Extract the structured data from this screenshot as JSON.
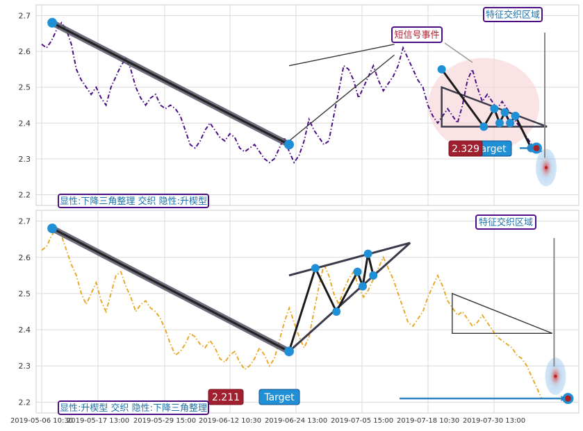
{
  "chart_data": [
    {
      "type": "line",
      "panel": "top",
      "series_color": "#4b0c84",
      "line_style": "dash-dot",
      "ylim": [
        2.17,
        2.73
      ],
      "yticks": [
        2.2,
        2.3,
        2.4,
        2.5,
        2.6,
        2.7
      ],
      "ytick_labels": [
        "2.2",
        "2.3",
        "2.4",
        "2.5",
        "2.6",
        "2.7"
      ],
      "grid": true,
      "series_y": [
        2.62,
        2.61,
        2.63,
        2.66,
        2.68,
        2.66,
        2.62,
        2.55,
        2.52,
        2.5,
        2.48,
        2.5,
        2.47,
        2.45,
        2.5,
        2.53,
        2.56,
        2.58,
        2.55,
        2.5,
        2.47,
        2.45,
        2.47,
        2.48,
        2.45,
        2.44,
        2.45,
        2.44,
        2.42,
        2.38,
        2.34,
        2.33,
        2.35,
        2.38,
        2.4,
        2.38,
        2.36,
        2.35,
        2.37,
        2.36,
        2.33,
        2.32,
        2.33,
        2.34,
        2.32,
        2.3,
        2.29,
        2.3,
        2.33,
        2.36,
        2.32,
        2.29,
        2.31,
        2.35,
        2.41,
        2.38,
        2.36,
        2.34,
        2.35,
        2.42,
        2.49,
        2.56,
        2.55,
        2.52,
        2.47,
        2.5,
        2.53,
        2.56,
        2.52,
        2.49,
        2.51,
        2.53,
        2.56,
        2.61,
        2.58,
        2.55,
        2.52,
        2.5,
        2.45,
        2.42,
        2.4,
        2.42,
        2.44,
        2.42,
        2.4,
        2.45,
        2.52,
        2.55,
        2.5,
        2.46,
        2.48,
        2.46,
        2.44,
        2.46,
        2.44,
        2.42,
        2.4,
        2.38,
        2.36,
        2.34,
        2.33,
        2.32
      ],
      "x_range": [
        0,
        101
      ],
      "pattern_points": [
        {
          "x": 2,
          "y": 2.68
        },
        {
          "x": 47,
          "y": 2.34
        }
      ],
      "triangle": {
        "points": [
          {
            "x": 76,
            "y": 2.5
          },
          {
            "x": 96,
            "y": 2.39
          },
          {
            "x": 76,
            "y": 2.39
          }
        ]
      },
      "wedge_lines": [
        {
          "x1": 47,
          "y1": 2.56,
          "x2": 67,
          "y2": 2.62
        },
        {
          "x1": 47,
          "y1": 2.35,
          "x2": 67,
          "y2": 2.59
        }
      ],
      "zigzag": [
        {
          "x": 76,
          "y": 2.55
        },
        {
          "x": 84,
          "y": 2.39
        },
        {
          "x": 86,
          "y": 2.44
        },
        {
          "x": 87,
          "y": 2.4
        },
        {
          "x": 88,
          "y": 2.43
        },
        {
          "x": 89,
          "y": 2.4
        },
        {
          "x": 90,
          "y": 2.42
        },
        {
          "x": 93,
          "y": 2.33
        }
      ],
      "target_point": {
        "x": 94,
        "y": 2.33
      },
      "event_label": "短信号事件",
      "zone_label": "特征交织区域",
      "value_label": "2.329",
      "target_label": "Target",
      "pattern_label": "显性:下降三角整理 交织 隐性:升楔型"
    },
    {
      "type": "line",
      "panel": "bottom",
      "series_color": "#e8a92b",
      "line_style": "dash-dot",
      "ylim": [
        2.17,
        2.73
      ],
      "yticks": [
        2.2,
        2.3,
        2.4,
        2.5,
        2.6,
        2.7
      ],
      "ytick_labels": [
        "2.2",
        "2.3",
        "2.4",
        "2.5",
        "2.6",
        "2.7"
      ],
      "grid": true,
      "series_y": [
        2.62,
        2.63,
        2.66,
        2.68,
        2.66,
        2.62,
        2.58,
        2.55,
        2.5,
        2.47,
        2.5,
        2.53,
        2.48,
        2.45,
        2.5,
        2.55,
        2.56,
        2.52,
        2.49,
        2.45,
        2.47,
        2.48,
        2.46,
        2.45,
        2.43,
        2.4,
        2.36,
        2.33,
        2.34,
        2.36,
        2.39,
        2.38,
        2.36,
        2.35,
        2.37,
        2.35,
        2.32,
        2.31,
        2.33,
        2.34,
        2.31,
        2.29,
        2.3,
        2.32,
        2.35,
        2.33,
        2.3,
        2.32,
        2.37,
        2.42,
        2.46,
        2.42,
        2.38,
        2.35,
        2.38,
        2.45,
        2.52,
        2.58,
        2.55,
        2.5,
        2.47,
        2.51,
        2.54,
        2.56,
        2.52,
        2.49,
        2.51,
        2.54,
        2.57,
        2.6,
        2.57,
        2.54,
        2.5,
        2.46,
        2.42,
        2.41,
        2.43,
        2.45,
        2.49,
        2.52,
        2.55,
        2.52,
        2.48,
        2.46,
        2.44,
        2.45,
        2.43,
        2.41,
        2.42,
        2.44,
        2.42,
        2.4,
        2.38,
        2.37,
        2.36,
        2.35,
        2.33,
        2.32,
        2.3,
        2.27,
        2.24,
        2.21
      ],
      "x_range": [
        0,
        101
      ],
      "pattern_points": [
        {
          "x": 2,
          "y": 2.68
        },
        {
          "x": 47,
          "y": 2.34
        }
      ],
      "zigzag": [
        {
          "x": 47,
          "y": 2.34
        },
        {
          "x": 52,
          "y": 2.57
        },
        {
          "x": 56,
          "y": 2.45
        },
        {
          "x": 60,
          "y": 2.56
        },
        {
          "x": 61,
          "y": 2.52
        },
        {
          "x": 62,
          "y": 2.61
        },
        {
          "x": 63,
          "y": 2.55
        }
      ],
      "wedge_lines": [
        {
          "x1": 47,
          "y1": 2.55,
          "x2": 70,
          "y2": 2.64
        },
        {
          "x1": 47,
          "y1": 2.34,
          "x2": 70,
          "y2": 2.64
        }
      ],
      "triangle": {
        "points": [
          {
            "x": 78,
            "y": 2.5
          },
          {
            "x": 97,
            "y": 2.39
          },
          {
            "x": 78,
            "y": 2.39
          }
        ]
      },
      "target_point": {
        "x": 100,
        "y": 2.21
      },
      "zone_label": "特征交织区域",
      "value_label": "2.211",
      "target_label": "Target",
      "pattern_label": "显性:升楔型 交织 隐性:下降三角整理"
    }
  ],
  "x_axis": {
    "tick_labels": [
      "2019-05-06 10:30",
      "2019-05-17 13:00",
      "2019-05-29 15:00",
      "2019-06-12 10:30",
      "2019-06-24 13:00",
      "2019-07-05 15:00",
      "2019-07-18 10:30",
      "2019-07-30 13:00"
    ]
  }
}
